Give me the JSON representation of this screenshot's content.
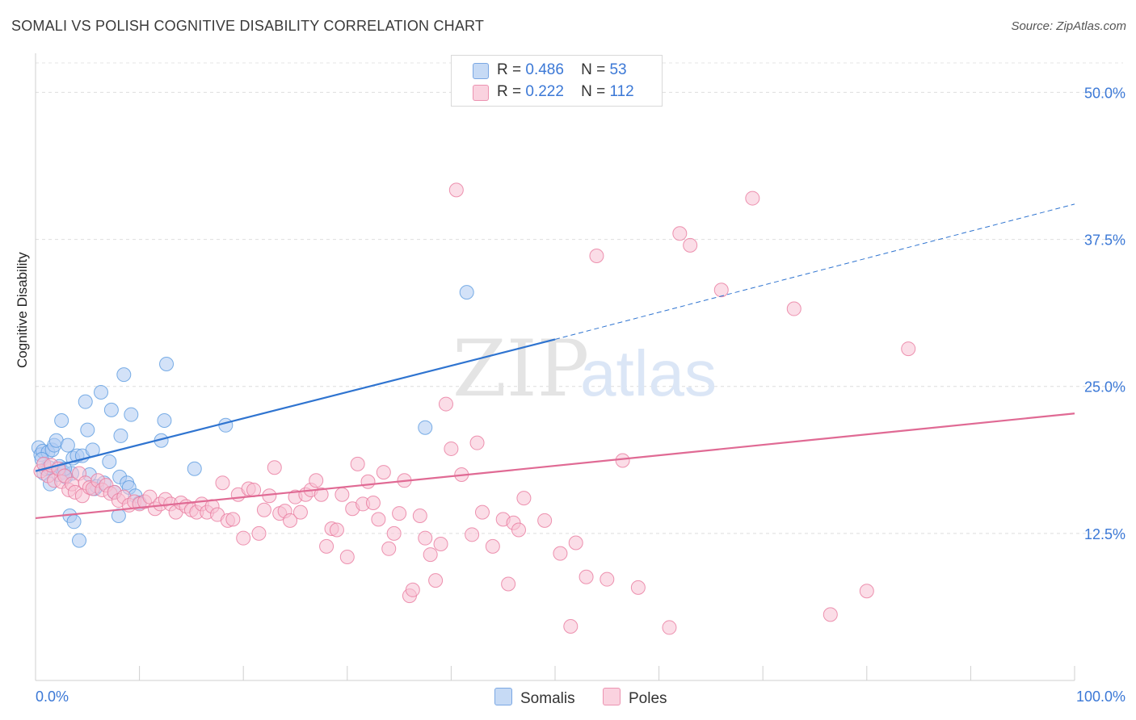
{
  "title": "SOMALI VS POLISH COGNITIVE DISABILITY CORRELATION CHART",
  "source": "Source: ZipAtlas.com",
  "watermark": {
    "zip": "ZIP",
    "atlas": "atlas"
  },
  "legend": {
    "rows": [
      {
        "r_label": "R =",
        "r_value": "0.486",
        "n_label": "N =",
        "n_value": "53",
        "color": "#9ec2f0"
      },
      {
        "r_label": "R =",
        "r_value": "0.222",
        "n_label": "N =",
        "n_value": "112",
        "color": "#f5b3c8"
      }
    ]
  },
  "chart_data": {
    "type": "scatter",
    "xlabel": "",
    "ylabel": "Cognitive Disability",
    "xlim": [
      0,
      100
    ],
    "ylim": [
      0,
      52.5
    ],
    "x_tick_labels": {
      "min": "0.0%",
      "max": "100.0%"
    },
    "y_ticks": [
      {
        "value": 12.5,
        "label": "12.5%"
      },
      {
        "value": 25.0,
        "label": "25.0%"
      },
      {
        "value": 37.5,
        "label": "37.5%"
      },
      {
        "value": 50.0,
        "label": "50.0%"
      }
    ],
    "grid": "horizontal-dashed",
    "series": [
      {
        "name": "Somalis",
        "color": "#5b9be0",
        "fill": "#aecbf2",
        "trend": {
          "x0": 0,
          "y0": 17.8,
          "x1": 50,
          "y1": 29.0,
          "dash_to_x": 100,
          "dash_to_y": 40.5,
          "color": "#2f74d0"
        },
        "points": [
          [
            0.3,
            19.8
          ],
          [
            0.5,
            19.2
          ],
          [
            0.7,
            19.5
          ],
          [
            0.8,
            17.6
          ],
          [
            1.0,
            18.0
          ],
          [
            1.2,
            19.4
          ],
          [
            1.4,
            16.7
          ],
          [
            1.6,
            19.6
          ],
          [
            1.8,
            20.0
          ],
          [
            2.0,
            20.4
          ],
          [
            2.2,
            17.5
          ],
          [
            2.3,
            18.2
          ],
          [
            2.5,
            22.1
          ],
          [
            2.7,
            17.7
          ],
          [
            2.9,
            17.3
          ],
          [
            3.1,
            20.0
          ],
          [
            3.3,
            14.0
          ],
          [
            3.5,
            17.6
          ],
          [
            3.6,
            18.9
          ],
          [
            3.7,
            13.5
          ],
          [
            4.0,
            19.1
          ],
          [
            4.2,
            11.9
          ],
          [
            4.5,
            19.1
          ],
          [
            4.8,
            23.7
          ],
          [
            5.0,
            21.3
          ],
          [
            5.2,
            17.5
          ],
          [
            5.5,
            19.6
          ],
          [
            5.7,
            16.3
          ],
          [
            5.9,
            16.5
          ],
          [
            6.3,
            24.5
          ],
          [
            6.6,
            16.8
          ],
          [
            7.1,
            18.6
          ],
          [
            7.3,
            23.0
          ],
          [
            7.6,
            16.0
          ],
          [
            8.0,
            14.0
          ],
          [
            8.1,
            17.3
          ],
          [
            8.2,
            20.8
          ],
          [
            8.5,
            26.0
          ],
          [
            8.8,
            16.8
          ],
          [
            9.0,
            16.4
          ],
          [
            9.2,
            22.6
          ],
          [
            9.6,
            15.7
          ],
          [
            10.0,
            15.1
          ],
          [
            12.1,
            20.4
          ],
          [
            12.4,
            22.1
          ],
          [
            12.6,
            26.9
          ],
          [
            15.3,
            18.0
          ],
          [
            18.3,
            21.7
          ],
          [
            37.5,
            21.5
          ],
          [
            41.5,
            33.0
          ],
          [
            0.6,
            18.8
          ],
          [
            1.3,
            18.1
          ],
          [
            2.8,
            18.0
          ]
        ]
      },
      {
        "name": "Poles",
        "color": "#e8799e",
        "fill": "#f7c1d3",
        "trend": {
          "x0": 0,
          "y0": 13.8,
          "x1": 100,
          "y1": 22.7,
          "color": "#e06a94"
        },
        "points": [
          [
            0.5,
            17.8
          ],
          [
            0.8,
            18.4
          ],
          [
            1.2,
            17.4
          ],
          [
            1.5,
            18.3
          ],
          [
            1.8,
            17.0
          ],
          [
            2.2,
            18.0
          ],
          [
            2.5,
            16.9
          ],
          [
            2.8,
            17.4
          ],
          [
            3.2,
            16.2
          ],
          [
            3.5,
            16.7
          ],
          [
            3.8,
            16.0
          ],
          [
            4.2,
            17.6
          ],
          [
            4.5,
            15.7
          ],
          [
            4.8,
            16.8
          ],
          [
            5.2,
            16.4
          ],
          [
            5.5,
            16.3
          ],
          [
            6.0,
            17.0
          ],
          [
            6.4,
            16.2
          ],
          [
            6.8,
            16.6
          ],
          [
            7.2,
            15.9
          ],
          [
            7.6,
            16.0
          ],
          [
            8.0,
            15.3
          ],
          [
            8.5,
            15.6
          ],
          [
            9.0,
            14.9
          ],
          [
            9.5,
            15.2
          ],
          [
            10.0,
            15.0
          ],
          [
            10.5,
            15.2
          ],
          [
            11.0,
            15.6
          ],
          [
            11.5,
            14.6
          ],
          [
            12.0,
            15.0
          ],
          [
            12.5,
            15.4
          ],
          [
            13.0,
            15.0
          ],
          [
            13.5,
            14.3
          ],
          [
            14.0,
            15.1
          ],
          [
            14.5,
            14.8
          ],
          [
            15.0,
            14.5
          ],
          [
            15.5,
            14.3
          ],
          [
            16.0,
            15.0
          ],
          [
            16.5,
            14.3
          ],
          [
            17.0,
            14.8
          ],
          [
            17.5,
            14.1
          ],
          [
            18.0,
            16.8
          ],
          [
            18.5,
            13.6
          ],
          [
            19.0,
            13.7
          ],
          [
            19.5,
            15.8
          ],
          [
            20.0,
            12.1
          ],
          [
            20.5,
            16.3
          ],
          [
            21.0,
            16.2
          ],
          [
            21.5,
            12.5
          ],
          [
            22.0,
            14.5
          ],
          [
            22.5,
            15.7
          ],
          [
            23.0,
            18.1
          ],
          [
            23.5,
            14.2
          ],
          [
            24.0,
            14.4
          ],
          [
            24.5,
            13.6
          ],
          [
            25.0,
            15.6
          ],
          [
            25.5,
            14.3
          ],
          [
            26.0,
            15.8
          ],
          [
            26.5,
            16.2
          ],
          [
            27.0,
            17.0
          ],
          [
            27.5,
            15.8
          ],
          [
            28.0,
            11.4
          ],
          [
            28.5,
            12.9
          ],
          [
            29.0,
            12.8
          ],
          [
            29.5,
            15.8
          ],
          [
            30.0,
            10.5
          ],
          [
            30.5,
            14.6
          ],
          [
            31.0,
            18.4
          ],
          [
            31.5,
            15.0
          ],
          [
            32.0,
            16.9
          ],
          [
            32.5,
            15.1
          ],
          [
            33.0,
            13.7
          ],
          [
            33.5,
            17.7
          ],
          [
            34.0,
            11.2
          ],
          [
            34.5,
            12.5
          ],
          [
            35.0,
            14.2
          ],
          [
            35.5,
            17.0
          ],
          [
            36.0,
            7.2
          ],
          [
            36.3,
            7.7
          ],
          [
            37.0,
            14.0
          ],
          [
            37.5,
            12.1
          ],
          [
            38.0,
            10.7
          ],
          [
            38.5,
            8.5
          ],
          [
            39.0,
            11.6
          ],
          [
            39.5,
            23.5
          ],
          [
            40.0,
            19.7
          ],
          [
            40.5,
            41.7
          ],
          [
            41.0,
            17.5
          ],
          [
            42.0,
            12.4
          ],
          [
            42.5,
            20.2
          ],
          [
            43.0,
            14.3
          ],
          [
            44.0,
            11.4
          ],
          [
            45.0,
            13.7
          ],
          [
            45.5,
            8.2
          ],
          [
            46.0,
            13.4
          ],
          [
            46.5,
            12.8
          ],
          [
            47.0,
            15.5
          ],
          [
            49.0,
            13.6
          ],
          [
            50.5,
            10.8
          ],
          [
            51.5,
            4.6
          ],
          [
            52.0,
            11.7
          ],
          [
            53.0,
            8.8
          ],
          [
            54.0,
            36.1
          ],
          [
            55.0,
            8.6
          ],
          [
            56.5,
            18.7
          ],
          [
            58.0,
            7.9
          ],
          [
            61.0,
            4.5
          ],
          [
            62.0,
            38.0
          ],
          [
            63.0,
            37.0
          ],
          [
            66.0,
            33.2
          ],
          [
            69.0,
            41.0
          ],
          [
            73.0,
            31.6
          ],
          [
            76.5,
            5.6
          ],
          [
            80.0,
            7.6
          ],
          [
            84.0,
            28.2
          ]
        ]
      }
    ]
  }
}
